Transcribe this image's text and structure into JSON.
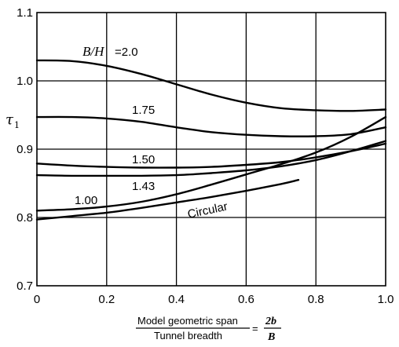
{
  "chart_data": {
    "type": "line",
    "xlabel_top": "Model geometric span",
    "xlabel_bottom": "Tunnel breadth",
    "xlabel_eq": "=",
    "xlabel_frac_top": "2b",
    "xlabel_frac_bottom": "B",
    "ylabel": "τ",
    "ylabel_sub": "1",
    "xlim": [
      0,
      1.0
    ],
    "ylim": [
      0.7,
      1.1
    ],
    "x_ticks": [
      "0",
      "0.2",
      "0.4",
      "0.6",
      "0.8",
      "1.0"
    ],
    "y_ticks": [
      "0.7",
      "0.8",
      "0.9",
      "1.0",
      "1.1"
    ],
    "grid": true,
    "series": [
      {
        "name": "B/H=2.0",
        "label_prefix": "B/H",
        "label_value": "=2.0",
        "x": [
          0,
          0.1,
          0.2,
          0.3,
          0.4,
          0.5,
          0.6,
          0.7,
          0.8,
          0.9,
          1.0
        ],
        "y": [
          1.03,
          1.029,
          1.022,
          1.01,
          0.995,
          0.98,
          0.968,
          0.96,
          0.957,
          0.956,
          0.958
        ]
      },
      {
        "name": "1.75",
        "x": [
          0,
          0.1,
          0.2,
          0.3,
          0.4,
          0.5,
          0.6,
          0.7,
          0.8,
          0.9,
          1.0
        ],
        "y": [
          0.947,
          0.947,
          0.945,
          0.94,
          0.932,
          0.925,
          0.921,
          0.919,
          0.919,
          0.922,
          0.932
        ]
      },
      {
        "name": "1.50",
        "x": [
          0,
          0.1,
          0.2,
          0.3,
          0.4,
          0.5,
          0.6,
          0.7,
          0.8,
          0.9,
          1.0
        ],
        "y": [
          0.879,
          0.876,
          0.874,
          0.873,
          0.873,
          0.874,
          0.877,
          0.881,
          0.888,
          0.897,
          0.908
        ]
      },
      {
        "name": "1.43",
        "x": [
          0,
          0.1,
          0.2,
          0.3,
          0.4,
          0.5,
          0.6,
          0.7,
          0.8,
          0.9,
          1.0
        ],
        "y": [
          0.862,
          0.861,
          0.861,
          0.861,
          0.862,
          0.865,
          0.869,
          0.875,
          0.884,
          0.897,
          0.912
        ]
      },
      {
        "name": "1.00",
        "x": [
          0,
          0.1,
          0.2,
          0.3,
          0.4,
          0.5,
          0.6,
          0.7,
          0.8,
          0.9,
          1.0
        ],
        "y": [
          0.81,
          0.812,
          0.816,
          0.823,
          0.834,
          0.848,
          0.863,
          0.878,
          0.895,
          0.918,
          0.947
        ]
      },
      {
        "name": "Circular",
        "x": [
          0,
          0.1,
          0.2,
          0.3,
          0.4,
          0.5,
          0.6,
          0.7,
          0.75
        ],
        "y": [
          0.797,
          0.802,
          0.807,
          0.814,
          0.822,
          0.83,
          0.839,
          0.849,
          0.855
        ]
      }
    ]
  }
}
